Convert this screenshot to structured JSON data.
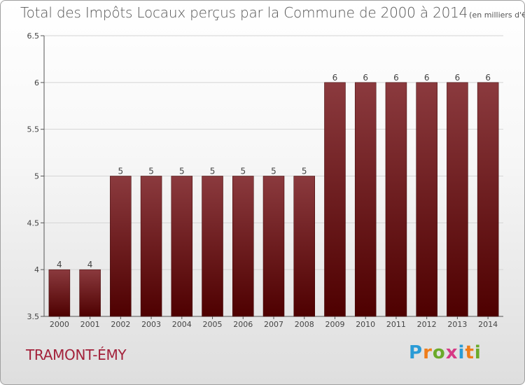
{
  "chart_data": {
    "type": "bar",
    "title": "Total des Impôts Locaux perçus par la Commune de 2000 à 2014",
    "subtitle": "(en milliers d'€)",
    "xlabel": "",
    "ylabel": "",
    "categories": [
      "2000",
      "2001",
      "2002",
      "2003",
      "2004",
      "2005",
      "2006",
      "2007",
      "2008",
      "2009",
      "2010",
      "2011",
      "2012",
      "2013",
      "2014"
    ],
    "values": [
      4,
      4,
      5,
      5,
      5,
      5,
      5,
      5,
      5,
      6,
      6,
      6,
      6,
      6,
      6
    ],
    "data_labels": [
      "4",
      "4",
      "5",
      "5",
      "5",
      "5",
      "5",
      "5",
      "5",
      "6",
      "6",
      "6",
      "6",
      "6",
      "6"
    ],
    "ylim": [
      3.5,
      6.5
    ],
    "yticks": [
      3.5,
      4,
      4.5,
      5,
      5.5,
      6,
      6.5
    ],
    "ytick_labels": [
      "3.5",
      "4",
      "4.5",
      "5",
      "5.5",
      "6",
      "6.5"
    ],
    "grid": true,
    "bar_color": "#6b1a1f"
  },
  "commune": "TRAMONT-ÉMY",
  "logo": {
    "text": "Proxiti",
    "letter_colors": [
      "#2a9bd6",
      "#ef7d1a",
      "#6aaa2a",
      "#d63a85",
      "#2a9bd6",
      "#ef7d1a",
      "#6aaa2a"
    ]
  }
}
